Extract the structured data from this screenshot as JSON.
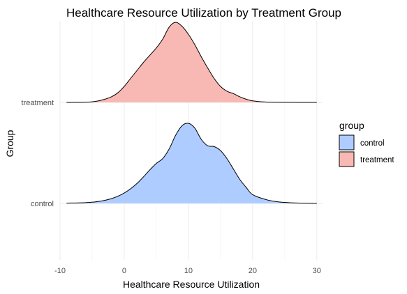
{
  "chart_data": {
    "type": "area",
    "subtype": "ridgeline-density",
    "title": "Healthcare Resource Utilization by Treatment Group",
    "xlabel": "Healthcare Resource Utilization",
    "ylabel": "Group",
    "xlim": [
      -10,
      31
    ],
    "x_ticks": [
      -10,
      0,
      10,
      20,
      30
    ],
    "grid": true,
    "legend": {
      "title": "group",
      "placement": "right"
    },
    "series": [
      {
        "name": "control",
        "color": "#aeccff",
        "x": [
          -9,
          -6,
          -4,
          -2,
          0,
          2,
          4,
          5,
          6,
          7,
          8,
          9,
          10,
          11,
          12,
          13,
          14,
          15,
          16,
          17,
          18,
          19,
          20,
          22,
          24,
          27,
          30
        ],
        "density": [
          0.004,
          0.01,
          0.025,
          0.06,
          0.13,
          0.25,
          0.42,
          0.5,
          0.56,
          0.68,
          0.85,
          0.97,
          1.0,
          0.94,
          0.8,
          0.72,
          0.71,
          0.66,
          0.56,
          0.43,
          0.3,
          0.2,
          0.11,
          0.05,
          0.02,
          0.005,
          0.001
        ]
      },
      {
        "name": "treatment",
        "color": "#f8b9b4",
        "x": [
          -9,
          -6,
          -5,
          -4,
          -3,
          -2,
          -1,
          0,
          1,
          2,
          3,
          4,
          5,
          6,
          7,
          8,
          9,
          10,
          11,
          12,
          13,
          14,
          15,
          16,
          17,
          18,
          19,
          20,
          22,
          26,
          30
        ],
        "density": [
          0.0,
          0.002,
          0.008,
          0.02,
          0.04,
          0.07,
          0.12,
          0.2,
          0.3,
          0.4,
          0.5,
          0.59,
          0.68,
          0.79,
          0.94,
          1.0,
          0.95,
          0.85,
          0.72,
          0.57,
          0.43,
          0.3,
          0.2,
          0.14,
          0.11,
          0.07,
          0.04,
          0.02,
          0.005,
          0.001,
          0.0
        ]
      }
    ]
  }
}
